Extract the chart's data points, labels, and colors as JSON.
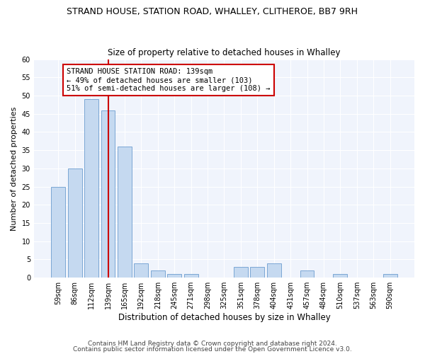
{
  "title1": "STRAND HOUSE, STATION ROAD, WHALLEY, CLITHEROE, BB7 9RH",
  "title2": "Size of property relative to detached houses in Whalley",
  "xlabel": "Distribution of detached houses by size in Whalley",
  "ylabel": "Number of detached properties",
  "categories": [
    "59sqm",
    "86sqm",
    "112sqm",
    "139sqm",
    "165sqm",
    "192sqm",
    "218sqm",
    "245sqm",
    "271sqm",
    "298sqm",
    "325sqm",
    "351sqm",
    "378sqm",
    "404sqm",
    "431sqm",
    "457sqm",
    "484sqm",
    "510sqm",
    "537sqm",
    "563sqm",
    "590sqm"
  ],
  "values": [
    25,
    30,
    49,
    46,
    36,
    4,
    2,
    1,
    1,
    0,
    0,
    3,
    3,
    4,
    0,
    2,
    0,
    1,
    0,
    0,
    1
  ],
  "bar_color": "#c5d9f0",
  "bar_edge_color": "#7ba7d4",
  "vline_x": 3,
  "vline_color": "#cc0000",
  "annotation_text": "STRAND HOUSE STATION ROAD: 139sqm\n← 49% of detached houses are smaller (103)\n51% of semi-detached houses are larger (108) →",
  "annotation_box_color": "#ffffff",
  "annotation_box_edge": "#cc0000",
  "ylim": [
    0,
    60
  ],
  "yticks": [
    0,
    5,
    10,
    15,
    20,
    25,
    30,
    35,
    40,
    45,
    50,
    55,
    60
  ],
  "footer1": "Contains HM Land Registry data © Crown copyright and database right 2024.",
  "footer2": "Contains public sector information licensed under the Open Government Licence v3.0.",
  "bg_color": "#ffffff",
  "plot_bg_color": "#f0f4fc",
  "grid_color": "#ffffff",
  "title1_fontsize": 9,
  "title2_fontsize": 8.5,
  "annotation_fontsize": 7.5,
  "ylabel_fontsize": 8,
  "xlabel_fontsize": 8.5,
  "tick_fontsize": 7,
  "footer_fontsize": 6.5
}
